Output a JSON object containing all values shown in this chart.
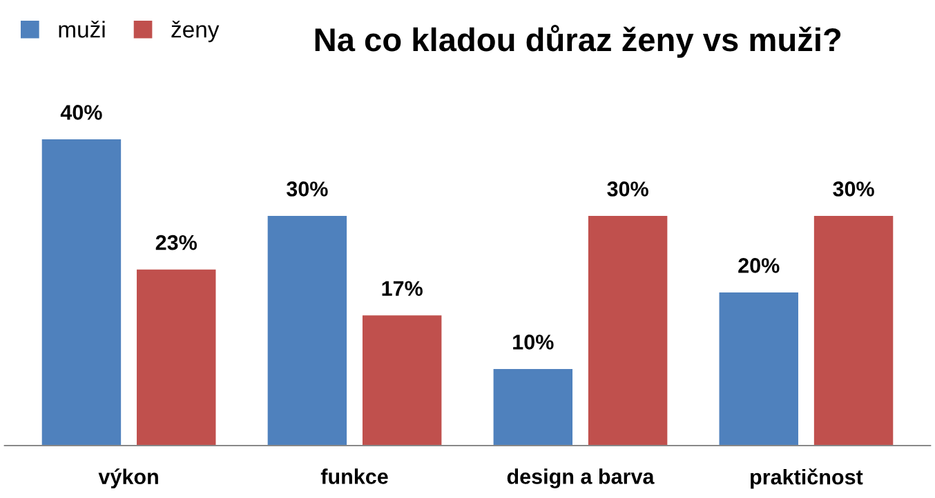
{
  "chart_data": {
    "type": "bar",
    "title": "Na co kladou důraz ženy vs muži?",
    "categories": [
      "výkon",
      "funkce",
      "design a barva",
      "praktičnost"
    ],
    "series": [
      {
        "name": "muži",
        "color": "#4f81bd",
        "values": [
          40,
          30,
          10,
          20
        ],
        "value_labels": [
          "40%",
          "30%",
          "10%",
          "20%"
        ]
      },
      {
        "name": "ženy",
        "color": "#c0504d",
        "values": [
          23,
          17,
          30,
          30
        ],
        "value_labels": [
          "23%",
          "17%",
          "30%",
          "30%"
        ]
      }
    ],
    "legend": "top left",
    "grid": false
  }
}
